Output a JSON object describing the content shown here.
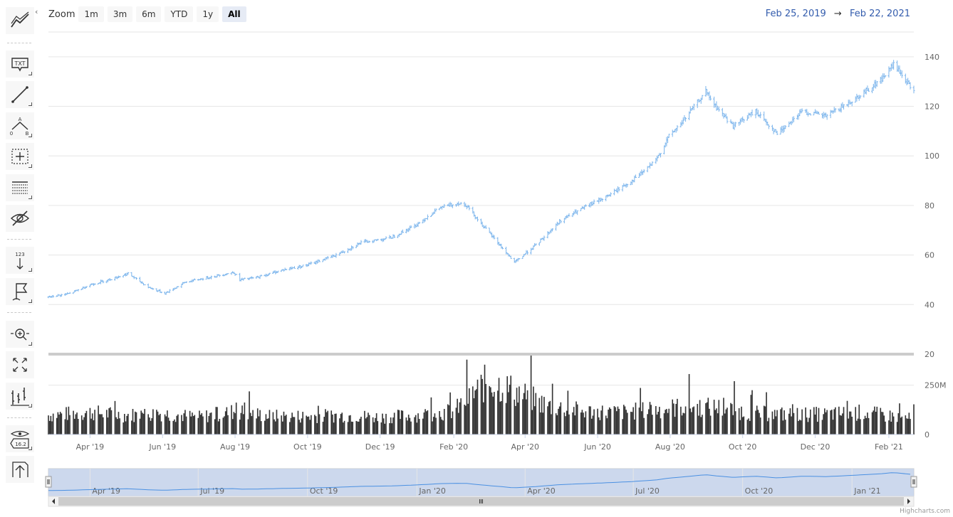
{
  "zoom": {
    "label": "Zoom",
    "buttons": [
      "1m",
      "3m",
      "6m",
      "YTD",
      "1y",
      "All"
    ],
    "active": "All"
  },
  "range": {
    "from": "Feb 25, 2019",
    "arrow": "→",
    "to": "Feb 22, 2021"
  },
  "toolbar": {
    "items": [
      {
        "name": "indicators",
        "icon": "indicators-icon"
      },
      {
        "name": "label",
        "icon": "label-icon"
      },
      {
        "name": "line",
        "icon": "line-icon"
      },
      {
        "name": "fibonacci",
        "icon": "fibonacci-icon"
      },
      {
        "name": "crosshair",
        "icon": "crosshair-icon"
      },
      {
        "name": "measure",
        "icon": "measure-icon"
      },
      {
        "name": "visibility",
        "icon": "eye-off-icon"
      },
      {
        "name": "vertical-counter",
        "icon": "vertical-counter-icon"
      },
      {
        "name": "flags",
        "icon": "flag-icon"
      },
      {
        "name": "zoom-change",
        "icon": "zoom-change-icon"
      },
      {
        "name": "fullscreen",
        "icon": "fullscreen-icon"
      },
      {
        "name": "series-type",
        "icon": "series-type-icon"
      },
      {
        "name": "current-price",
        "icon": "current-price-icon"
      },
      {
        "name": "save-chart",
        "icon": "save-chart-icon"
      }
    ],
    "txt_text": "TXT",
    "counter_text": "123",
    "fib_a": "A",
    "fib_b": "B",
    "fib_zero": "0",
    "price_text": "16.2"
  },
  "credits": "Highcharts.com",
  "colors": {
    "price": "#7cb5ec",
    "volume": "#333333",
    "navigator_fill": "#c3d1ea",
    "grid": "#e6e6e6"
  },
  "chart_data": {
    "type": "ohlc",
    "price_axis": {
      "ticks": [
        20,
        40,
        60,
        80,
        100,
        120,
        140
      ],
      "range": [
        20,
        150
      ]
    },
    "volume_axis": {
      "ticks": [
        0,
        250
      ],
      "tick_labels": [
        "0",
        "250M"
      ],
      "range": [
        0,
        400
      ],
      "unit": "M"
    },
    "x_labels": [
      "Apr '19",
      "Jun '19",
      "Aug '19",
      "Oct '19",
      "Dec '19",
      "Feb '20",
      "Apr '20",
      "Jun '20",
      "Aug '20",
      "Oct '20",
      "Dec '20",
      "Feb '21"
    ],
    "navigator_labels": [
      "Apr '19",
      "Jul '19",
      "Oct '19",
      "Jan '20",
      "Apr '20",
      "Jul '20",
      "Oct '20",
      "Jan '21"
    ],
    "x_range": [
      "2019-02-25",
      "2021-02-22"
    ],
    "close_series": {
      "dates": [
        "2019-02-25",
        "2019-03-15",
        "2019-04-01",
        "2019-04-20",
        "2019-05-03",
        "2019-05-20",
        "2019-06-03",
        "2019-06-20",
        "2019-07-10",
        "2019-07-31",
        "2019-08-05",
        "2019-08-20",
        "2019-09-10",
        "2019-10-01",
        "2019-10-25",
        "2019-11-15",
        "2019-12-10",
        "2019-12-31",
        "2020-01-20",
        "2020-02-05",
        "2020-02-12",
        "2020-02-25",
        "2020-03-09",
        "2020-03-23",
        "2020-04-10",
        "2020-05-01",
        "2020-05-20",
        "2020-06-10",
        "2020-06-30",
        "2020-07-20",
        "2020-07-31",
        "2020-08-10",
        "2020-08-31",
        "2020-09-08",
        "2020-09-23",
        "2020-10-12",
        "2020-10-30",
        "2020-11-20",
        "2020-12-10",
        "2020-12-28",
        "2021-01-15",
        "2021-01-26",
        "2021-02-05",
        "2021-02-22"
      ],
      "values": [
        43,
        44.5,
        48,
        50.5,
        52.5,
        47,
        44.5,
        49,
        51,
        53,
        50,
        51,
        54,
        56,
        60,
        65,
        67,
        72,
        79,
        81,
        80,
        72,
        65,
        57,
        64,
        74,
        79,
        84,
        90,
        98,
        108,
        113,
        126,
        120,
        112,
        118,
        109,
        118,
        116,
        121,
        127,
        131,
        137,
        126
      ]
    },
    "volume_series": {
      "dates": [
        "2019-02-25",
        "2019-04-01",
        "2019-05-01",
        "2019-06-01",
        "2019-07-01",
        "2019-08-01",
        "2019-09-01",
        "2019-10-01",
        "2019-11-01",
        "2019-12-01",
        "2020-01-01",
        "2020-02-01",
        "2020-03-01",
        "2020-03-25",
        "2020-04-20",
        "2020-05-20",
        "2020-06-20",
        "2020-07-20",
        "2020-08-15",
        "2020-09-10",
        "2020-10-10",
        "2020-11-10",
        "2020-12-10",
        "2021-01-10",
        "2021-02-22"
      ],
      "values_m": [
        100,
        115,
        100,
        110,
        90,
        120,
        95,
        95,
        100,
        90,
        100,
        120,
        280,
        220,
        150,
        120,
        115,
        130,
        145,
        140,
        110,
        105,
        105,
        115,
        80
      ]
    },
    "navigator": {
      "series": "close",
      "selected_range": [
        "2019-02-25",
        "2021-02-22"
      ]
    }
  }
}
